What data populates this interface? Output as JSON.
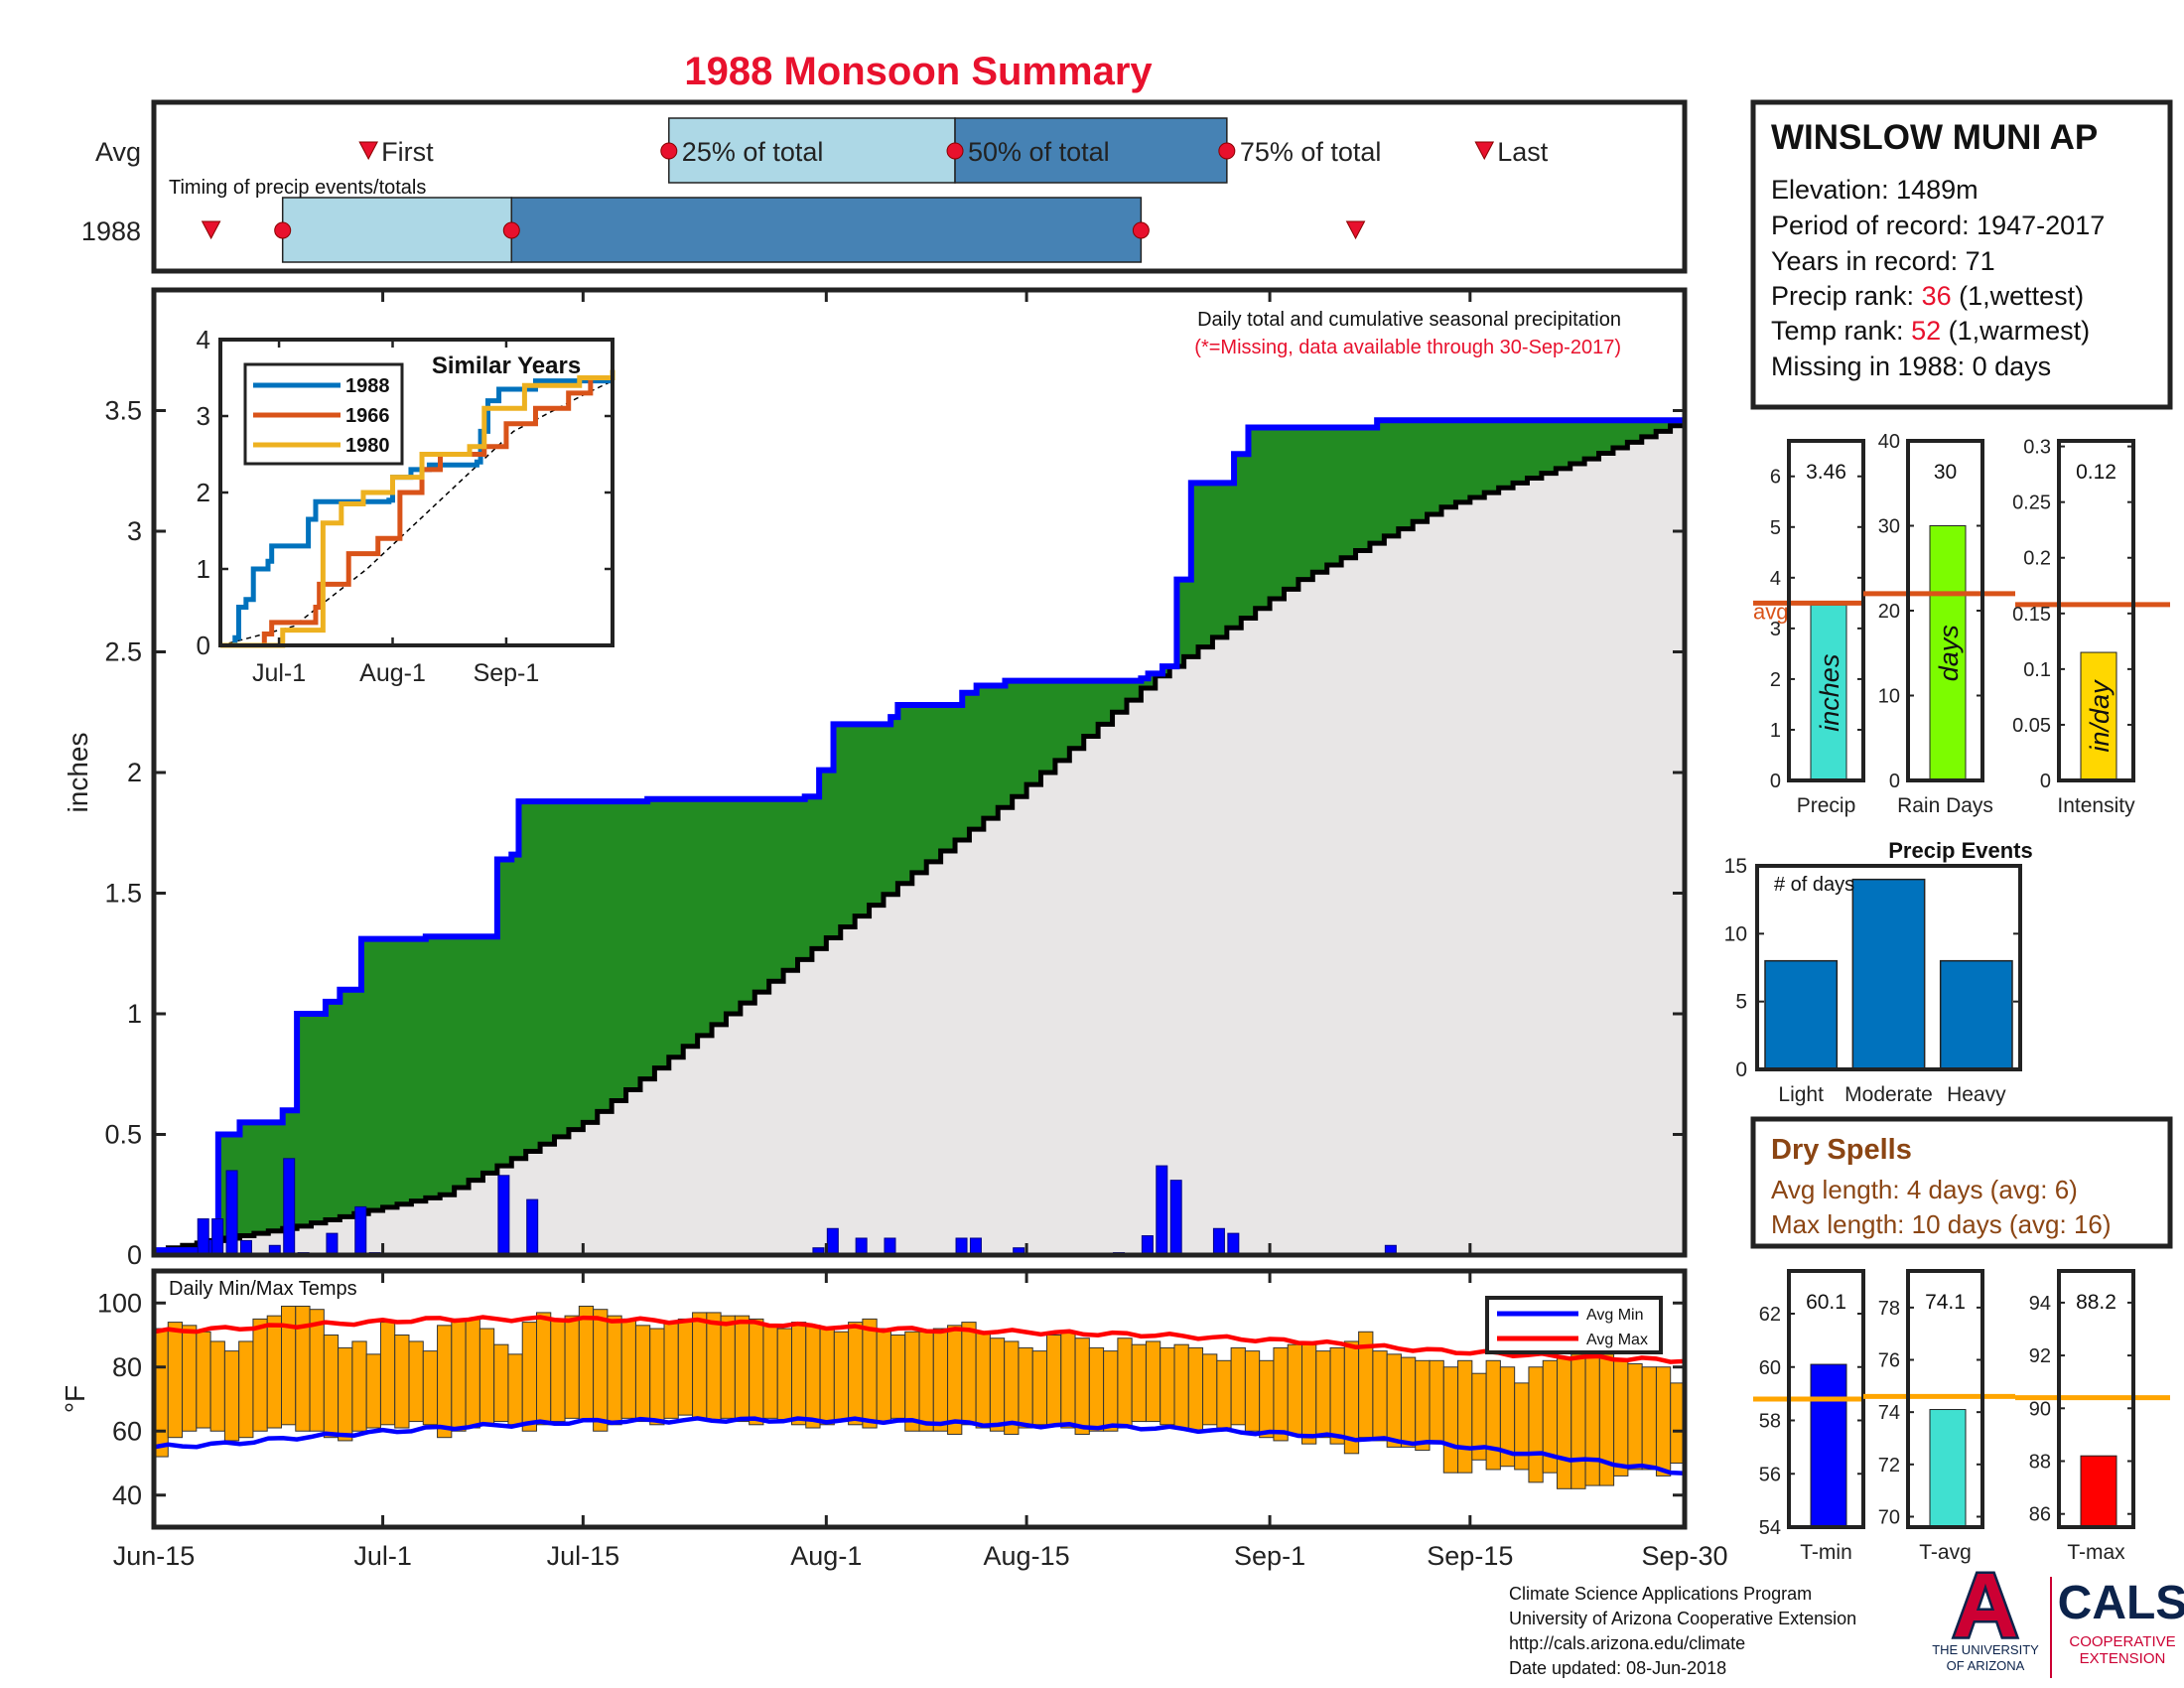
{
  "title": "1988 Monsoon Summary",
  "colors": {
    "title_red": "#e8112d",
    "highlight_red": "#e8112d",
    "light_blue": "#add8e6",
    "steel_blue": "#4682b4",
    "green": "#228b22",
    "gray_fill": "#e8e6e6",
    "blue_line": "#0000ff",
    "bar_blue": "#0000ff",
    "orange_bar": "#ffa500",
    "red_line": "#ff0000",
    "avg_line": "#d95319",
    "brown_text": "#8b4513",
    "event_blue": "#0072bd",
    "precip_bar": "#40e0d0",
    "raindays_bar": "#7cfc00",
    "intensity_bar": "#ffd700",
    "tmin_bar": "#0000ff",
    "tavg_bar": "#40e0d0",
    "tmax_bar": "#ff0000",
    "t_avg_line": "#ffa500",
    "ua_red": "#cc0033",
    "ua_navy": "#0c234b"
  },
  "timing_panel": {
    "avg_label": "Avg",
    "year_label": "1988",
    "caption": "Timing of precip events/totals",
    "first_label": "First",
    "last_label": "Last",
    "p25_label": "25% of total",
    "p50_label": "50% of total",
    "p75_label": "75% of total",
    "avg_days": {
      "first": 15,
      "p25": 36,
      "p50": 56,
      "p75": 75,
      "last": 93
    },
    "year_days": {
      "first": 4,
      "p25": 9,
      "p50": 25,
      "p75": 69,
      "last": 84
    }
  },
  "station": {
    "name": "WINSLOW MUNI AP",
    "elevation": "Elevation: 1489m",
    "period": "Period of record: 1947-2017",
    "years": "Years in record: 71",
    "precip_rank_label": "Precip rank: ",
    "precip_rank_value": "36",
    "precip_rank_suffix": " (1,wettest)",
    "temp_rank_label": "Temp rank: ",
    "temp_rank_value": "52",
    "temp_rank_suffix": " (1,warmest)",
    "missing": "Missing in 1988: 0 days"
  },
  "chart_data": [
    {
      "type": "area",
      "name": "main-precip",
      "annotation_1": "Daily total and cumulative seasonal precipitation",
      "annotation_2": "(*=Missing, data available through 30-Sep-2017)",
      "ylabel": "inches",
      "ylim": [
        0,
        4
      ],
      "yticks": [
        0,
        0.5,
        1,
        1.5,
        2,
        2.5,
        3,
        3.5
      ],
      "ytick_labels": [
        "0",
        "0.5",
        "1",
        "1.5",
        "2",
        "2.5",
        "3",
        "3.5"
      ],
      "x_range_days": [
        0,
        107
      ],
      "cum_1988": [
        [
          0,
          0.02
        ],
        [
          4,
          0.05
        ],
        [
          4.5,
          0.5
        ],
        [
          5,
          0.5
        ],
        [
          6,
          0.55
        ],
        [
          9,
          0.55
        ],
        [
          9,
          0.6
        ],
        [
          9.5,
          0.6
        ],
        [
          10,
          1.0
        ],
        [
          12,
          1.0
        ],
        [
          12,
          1.05
        ],
        [
          13,
          1.05
        ],
        [
          13,
          1.1
        ],
        [
          14,
          1.1
        ],
        [
          14.5,
          1.31
        ],
        [
          19,
          1.31
        ],
        [
          19,
          1.32
        ],
        [
          23,
          1.32
        ],
        [
          24,
          1.64
        ],
        [
          25,
          1.66
        ],
        [
          25.5,
          1.88
        ],
        [
          34,
          1.88
        ],
        [
          34.5,
          1.89
        ],
        [
          45,
          1.89
        ],
        [
          45.5,
          1.9
        ],
        [
          46,
          1.9
        ],
        [
          46.5,
          2.01
        ],
        [
          47,
          2.01
        ],
        [
          47.5,
          2.2
        ],
        [
          51,
          2.2
        ],
        [
          51.5,
          2.23
        ],
        [
          52,
          2.23
        ],
        [
          52,
          2.28
        ],
        [
          56,
          2.28
        ],
        [
          56.5,
          2.33
        ],
        [
          57,
          2.33
        ],
        [
          57.5,
          2.36
        ],
        [
          59,
          2.36
        ],
        [
          59.5,
          2.38
        ],
        [
          69,
          2.39
        ],
        [
          69.5,
          2.41
        ],
        [
          70,
          2.41
        ],
        [
          70.5,
          2.44
        ],
        [
          71,
          2.44
        ],
        [
          71.5,
          2.8
        ],
        [
          72,
          2.8
        ],
        [
          72.5,
          3.2
        ],
        [
          75,
          3.2
        ],
        [
          75.5,
          3.32
        ],
        [
          76,
          3.32
        ],
        [
          76.5,
          3.43
        ],
        [
          85,
          3.43
        ],
        [
          85.5,
          3.46
        ],
        [
          107,
          3.46
        ]
      ],
      "avg_cum_x": [
        0,
        10,
        20,
        30,
        40,
        50,
        60,
        70,
        80,
        90,
        100,
        107
      ],
      "avg_cum_y": [
        0.02,
        0.12,
        0.25,
        0.55,
        1.0,
        1.45,
        1.9,
        2.4,
        2.8,
        3.1,
        3.3,
        3.46
      ],
      "daily_precip": [
        [
          3,
          0.15
        ],
        [
          4,
          0.15
        ],
        [
          5,
          0.35
        ],
        [
          6,
          0.06
        ],
        [
          8,
          0.04
        ],
        [
          9,
          0.4
        ],
        [
          10,
          0.01
        ],
        [
          12,
          0.09
        ],
        [
          14,
          0.2
        ],
        [
          15,
          0.01
        ],
        [
          24,
          0.33
        ],
        [
          26,
          0.23
        ],
        [
          46,
          0.03
        ],
        [
          47,
          0.11
        ],
        [
          49,
          0.07
        ],
        [
          51,
          0.07
        ],
        [
          56,
          0.07
        ],
        [
          57,
          0.07
        ],
        [
          60,
          0.03
        ],
        [
          67,
          0.01
        ],
        [
          69,
          0.08
        ],
        [
          70,
          0.37
        ],
        [
          71,
          0.31
        ],
        [
          74,
          0.11
        ],
        [
          75,
          0.09
        ],
        [
          86,
          0.04
        ]
      ]
    },
    {
      "type": "line",
      "name": "similar-years",
      "title": "Similar Years",
      "ylim": [
        0,
        4
      ],
      "yticks": [
        0,
        1,
        2,
        3,
        4
      ],
      "ytick_labels": [
        "0",
        "1",
        "2",
        "3",
        "4"
      ],
      "xtick_labels": [
        "Jul-1",
        "Aug-1",
        "Sep-1"
      ],
      "xtick_days": [
        16,
        47,
        78
      ],
      "series": [
        {
          "name": "1988",
          "color": "#0072bd",
          "values": [
            [
              0,
              0
            ],
            [
              4,
              0.1
            ],
            [
              5,
              0.5
            ],
            [
              7,
              0.6
            ],
            [
              9,
              1.0
            ],
            [
              13,
              1.1
            ],
            [
              14,
              1.3
            ],
            [
              19,
              1.3
            ],
            [
              24,
              1.65
            ],
            [
              26,
              1.88
            ],
            [
              46,
              1.9
            ],
            [
              47,
              2.2
            ],
            [
              52,
              2.3
            ],
            [
              57,
              2.36
            ],
            [
              70,
              2.4
            ],
            [
              71,
              2.8
            ],
            [
              73,
              3.2
            ],
            [
              76,
              3.35
            ],
            [
              86,
              3.46
            ],
            [
              107,
              3.46
            ]
          ]
        },
        {
          "name": "1966",
          "color": "#d95319",
          "values": [
            [
              0,
              0
            ],
            [
              12,
              0.15
            ],
            [
              14,
              0.3
            ],
            [
              26,
              0.5
            ],
            [
              27,
              0.8
            ],
            [
              35,
              1.2
            ],
            [
              43,
              1.4
            ],
            [
              49,
              2.0
            ],
            [
              55,
              2.3
            ],
            [
              60,
              2.5
            ],
            [
              72,
              2.6
            ],
            [
              78,
              2.9
            ],
            [
              86,
              3.1
            ],
            [
              95,
              3.3
            ],
            [
              101,
              3.5
            ],
            [
              107,
              3.6
            ]
          ]
        },
        {
          "name": "1980",
          "color": "#edb120",
          "values": [
            [
              0,
              0
            ],
            [
              17,
              0.2
            ],
            [
              28,
              1.6
            ],
            [
              33,
              1.85
            ],
            [
              39,
              2.0
            ],
            [
              47,
              2.2
            ],
            [
              55,
              2.5
            ],
            [
              68,
              2.6
            ],
            [
              72,
              3.1
            ],
            [
              78,
              3.1
            ],
            [
              83,
              3.4
            ],
            [
              98,
              3.5
            ],
            [
              107,
              3.6
            ]
          ]
        }
      ],
      "avg_cum_x": [
        0,
        20,
        40,
        60,
        80,
        100,
        107
      ],
      "avg_cum_y": [
        0,
        0.25,
        1.0,
        1.9,
        2.8,
        3.3,
        3.46
      ]
    },
    {
      "type": "bar",
      "name": "daily-temps",
      "title": "Daily Min/Max Temps",
      "ylabel": "°F",
      "ylim": [
        30,
        110
      ],
      "yticks": [
        40,
        60,
        80,
        100
      ],
      "ytick_labels": [
        "40",
        "60",
        "80",
        "100"
      ],
      "xtick_labels": [
        "Jun-15",
        "Jul-1",
        "Jul-15",
        "Aug-1",
        "Aug-15",
        "Sep-1",
        "Sep-15",
        "Sep-30"
      ],
      "xtick_days": [
        0,
        16,
        30,
        47,
        61,
        78,
        92,
        107
      ],
      "legend": [
        "Avg Min",
        "Avg Max"
      ],
      "legend_position": "top-right",
      "avg_min_x": [
        0,
        5,
        10,
        20,
        30,
        40,
        50,
        60,
        70,
        80,
        90,
        100,
        107
      ],
      "avg_min_y": [
        55,
        56,
        58,
        61,
        63,
        63.5,
        63.3,
        62,
        61,
        59,
        56,
        51,
        47
      ],
      "avg_max_x": [
        0,
        10,
        20,
        30,
        40,
        50,
        60,
        70,
        80,
        90,
        100,
        107
      ],
      "avg_max_y": [
        91,
        93,
        95,
        95,
        94,
        92,
        91,
        90,
        88,
        85,
        83,
        82
      ],
      "daily_min": [
        52,
        58,
        60,
        61,
        60,
        57,
        58,
        60,
        61,
        62,
        60,
        60,
        58,
        57,
        60,
        61,
        62,
        61,
        63,
        62,
        58,
        60,
        61,
        62,
        63,
        62,
        60,
        62,
        63,
        64,
        63,
        60,
        62,
        64,
        63,
        62,
        64,
        65,
        64,
        63,
        64,
        63,
        62,
        64,
        63,
        62,
        61,
        62,
        63,
        62,
        61,
        63,
        64,
        60,
        60,
        60,
        59,
        62,
        61,
        60,
        59,
        61,
        62,
        62,
        61,
        59,
        60,
        60,
        61,
        63,
        63,
        62,
        61,
        60,
        62,
        61,
        62,
        60,
        58,
        57,
        59,
        56,
        58,
        56,
        53,
        58,
        57,
        55,
        55,
        54,
        56,
        47,
        47,
        51,
        48,
        49,
        48,
        44,
        47,
        42,
        42,
        43,
        43,
        46,
        48,
        48,
        46,
        50
      ],
      "daily_max": [
        92,
        94,
        93,
        91,
        88,
        85,
        88,
        95,
        96,
        99,
        99,
        98,
        90,
        86,
        88,
        84,
        94,
        90,
        88,
        85,
        93,
        95,
        95,
        92,
        87,
        84,
        94,
        97,
        95,
        96,
        99,
        98,
        96,
        95,
        93,
        92,
        94,
        95,
        97,
        97,
        96,
        96,
        95,
        93,
        92,
        94,
        93,
        92,
        91,
        94,
        95,
        92,
        90,
        91,
        91,
        92,
        93,
        94,
        91,
        89,
        88,
        86,
        85,
        90,
        91,
        89,
        86,
        85,
        89,
        87,
        88,
        86,
        87,
        86,
        84,
        82,
        86,
        85,
        82,
        86,
        87,
        87,
        85,
        86,
        88,
        91,
        85,
        84,
        83,
        82,
        82,
        80,
        82,
        78,
        82,
        80,
        75,
        80,
        82,
        83,
        84,
        85,
        84,
        82,
        81,
        80,
        80,
        75
      ]
    },
    {
      "type": "bar",
      "name": "precip-stat",
      "category": "Precip",
      "value": 3.46,
      "value_label": "3.46",
      "unit_label": "inches",
      "avg": 3.5,
      "avg_label": "avg",
      "ylim": [
        0,
        6.7
      ],
      "yticks": [
        0,
        1,
        2,
        3,
        4,
        5,
        6
      ],
      "ytick_labels": [
        "0",
        "1",
        "2",
        "3",
        "4",
        "5",
        "6"
      ]
    },
    {
      "type": "bar",
      "name": "raindays-stat",
      "category": "Rain Days",
      "value": 30,
      "value_label": "30",
      "unit_label": "days",
      "avg": 22,
      "ylim": [
        0,
        40
      ],
      "yticks": [
        0,
        10,
        20,
        30,
        40
      ],
      "ytick_labels": [
        "0",
        "10",
        "20",
        "30",
        "40"
      ]
    },
    {
      "type": "bar",
      "name": "intensity-stat",
      "category": "Intensity",
      "value": 0.115,
      "value_label": "0.12",
      "unit_label": "in/day",
      "avg": 0.158,
      "ylim": [
        0,
        0.305
      ],
      "yticks": [
        0,
        0.05,
        0.1,
        0.15,
        0.2,
        0.25,
        0.3
      ],
      "ytick_labels": [
        "0",
        "0.05",
        "0.1",
        "0.15",
        "0.2",
        "0.25",
        "0.3"
      ]
    },
    {
      "type": "bar",
      "name": "precip-events",
      "title": "Precip Events",
      "ylabel": "# of days",
      "categories": [
        "Light",
        "Moderate",
        "Heavy"
      ],
      "values": [
        8,
        14,
        8
      ],
      "ylim": [
        0,
        15
      ],
      "yticks": [
        0,
        5,
        10,
        15
      ],
      "ytick_labels": [
        "0",
        "5",
        "10",
        "15"
      ]
    },
    {
      "type": "bar",
      "name": "tmin-stat",
      "category": "T-min",
      "value": 60.1,
      "value_label": "60.1",
      "avg": 58.8,
      "ylim": [
        54,
        63.6
      ],
      "yticks": [
        54,
        56,
        58,
        60,
        62
      ],
      "ytick_labels": [
        "54",
        "56",
        "58",
        "60",
        "62"
      ]
    },
    {
      "type": "bar",
      "name": "tavg-stat",
      "category": "T-avg",
      "value": 74.1,
      "value_label": "74.1",
      "avg": 74.6,
      "ylim": [
        69.6,
        79.4
      ],
      "yticks": [
        70,
        72,
        74,
        76,
        78
      ],
      "ytick_labels": [
        "70",
        "72",
        "74",
        "76",
        "78"
      ]
    },
    {
      "type": "bar",
      "name": "tmax-stat",
      "category": "T-max",
      "value": 88.2,
      "value_label": "88.2",
      "avg": 90.4,
      "ylim": [
        85.5,
        95.2
      ],
      "yticks": [
        86,
        88,
        90,
        92,
        94
      ],
      "ytick_labels": [
        "86",
        "88",
        "90",
        "92",
        "94"
      ]
    }
  ],
  "dry_spells": {
    "title": "Dry Spells",
    "avg_length": "Avg length: 4 days (avg: 6)",
    "max_length": "Max length: 10 days (avg: 16)"
  },
  "footer": {
    "line1": "Climate Science Applications Program",
    "line2": "University of Arizona Cooperative Extension",
    "line3": "http://cals.arizona.edu/climate",
    "line4": " Date updated: 08-Jun-2018"
  },
  "logos": {
    "ua_line1": "THE UNIVERSITY",
    "ua_line2": "OF ARIZONA",
    "ua_letter": "A",
    "cals": "CALS",
    "coop1": "COOPERATIVE",
    "coop2": "EXTENSION"
  }
}
